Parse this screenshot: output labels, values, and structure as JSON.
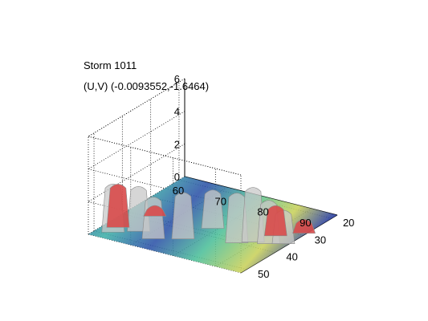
{
  "chart_data": {
    "type": "surface3d",
    "title_lines": [
      "Storm 1011",
      "(U,V) (-0.0093552,-1.6464)"
    ],
    "x_ticks": [
      60,
      70,
      80,
      90
    ],
    "y_ticks": [
      20,
      30,
      40,
      50
    ],
    "z_ticks": [
      0,
      2,
      4,
      6
    ],
    "xlim": [
      60,
      96
    ],
    "ylim": [
      18,
      52
    ],
    "zlim": [
      0,
      6
    ],
    "grid": true,
    "colors": {
      "isosurface_gray": "#c8c8c8",
      "isosurface_red": "#d84a4a",
      "slice_low": "#2a3f9e",
      "slice_mid": "#3fb0a8",
      "slice_high": "#d6d04a"
    },
    "gray_blobs": [
      {
        "x": 63.5,
        "y": 48.5,
        "z": 2.9
      },
      {
        "x": 67.5,
        "y": 45.5,
        "z": 2.7
      },
      {
        "x": 72,
        "y": 47,
        "z": 2.5
      },
      {
        "x": 77,
        "y": 44,
        "z": 2.8
      },
      {
        "x": 79,
        "y": 36.5,
        "z": 2.3
      },
      {
        "x": 87,
        "y": 40,
        "z": 3.0
      },
      {
        "x": 89.5,
        "y": 38,
        "z": 3.3
      },
      {
        "x": 92.5,
        "y": 37,
        "z": 2.6
      },
      {
        "x": 95,
        "y": 35.5,
        "z": 2.0
      }
    ],
    "red_blobs": [
      {
        "x": 63,
        "y": 46,
        "z": 2.6
      },
      {
        "x": 66,
        "y": 37.5,
        "z": 0.6
      },
      {
        "x": 91.5,
        "y": 33,
        "z": 1.8
      },
      {
        "x": 95.5,
        "y": 29,
        "z": 0.8
      }
    ]
  }
}
